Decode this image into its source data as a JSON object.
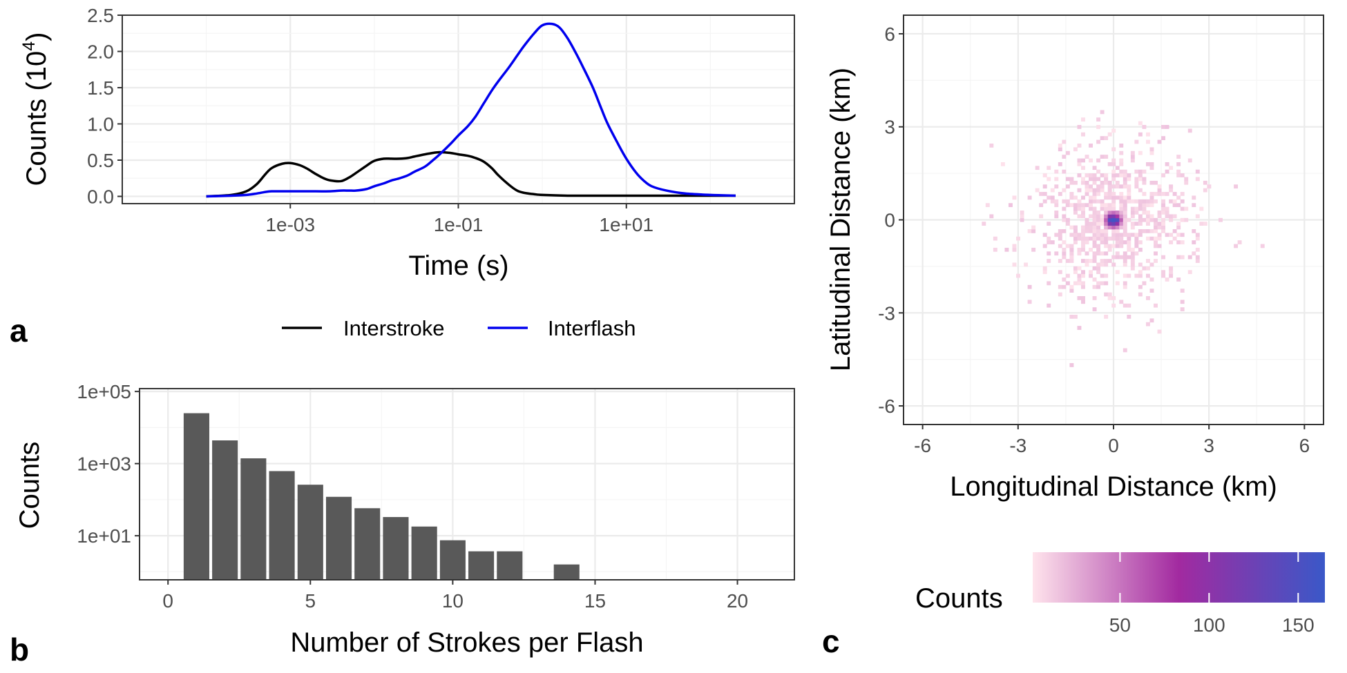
{
  "colors": {
    "interstroke": "#000000",
    "interflash": "#0000ee",
    "bar": "#595959",
    "grid_major": "#ebebeb",
    "grid_minor": "#f5f5f5",
    "panel_border": "#333333",
    "heat_low": "#ffe4ec",
    "heat_mid": "#a22aa0",
    "heat_high": "#3a58c8"
  },
  "panel_labels": {
    "a": "a",
    "b": "b",
    "c": "c"
  },
  "legend": {
    "interstroke": "Interstroke",
    "interflash": "Interflash"
  },
  "chart_data": [
    {
      "id": "a",
      "type": "line",
      "xlabel": "Time (s)",
      "ylabel": "Counts (10",
      "ylabel_sup": "4",
      "ylabel_end": ")",
      "x_scale": "log10",
      "xlim": [
        1e-05,
        1000
      ],
      "ylim": [
        -0.1,
        2.5
      ],
      "x_ticks": [
        0.001,
        0.1,
        10
      ],
      "x_tick_labels": [
        "1e-03",
        "1e-01",
        "1e+01"
      ],
      "y_ticks": [
        0,
        0.5,
        1,
        1.5,
        2,
        2.5
      ],
      "y_tick_labels": [
        "0.0",
        "0.5",
        "1.0",
        "1.5",
        "2.0",
        "2.5"
      ],
      "legend_position": "bottom",
      "series": [
        {
          "name": "Interstroke",
          "x": [
            0.0001,
            0.0002,
            0.0003,
            0.0004,
            0.0005,
            0.0006,
            0.0008,
            0.001,
            0.0013,
            0.0016,
            0.002,
            0.0025,
            0.003,
            0.004,
            0.005,
            0.006,
            0.008,
            0.01,
            0.013,
            0.016,
            0.02,
            0.025,
            0.03,
            0.04,
            0.05,
            0.06,
            0.08,
            0.1,
            0.13,
            0.16,
            0.2,
            0.25,
            0.3,
            0.4,
            0.5,
            0.6,
            0.8,
            1,
            2,
            5,
            10,
            20,
            50,
            100,
            200
          ],
          "y": [
            0.0,
            0.02,
            0.07,
            0.17,
            0.3,
            0.39,
            0.45,
            0.46,
            0.43,
            0.38,
            0.31,
            0.25,
            0.22,
            0.21,
            0.26,
            0.32,
            0.42,
            0.49,
            0.52,
            0.52,
            0.52,
            0.53,
            0.55,
            0.58,
            0.6,
            0.61,
            0.6,
            0.58,
            0.56,
            0.53,
            0.48,
            0.39,
            0.29,
            0.16,
            0.08,
            0.05,
            0.03,
            0.02,
            0.01,
            0.01,
            0.01,
            0.01,
            0.01,
            0.01,
            0.01
          ]
        },
        {
          "name": "Interflash",
          "x": [
            0.0001,
            0.0002,
            0.0003,
            0.0004,
            0.0005,
            0.0006,
            0.0008,
            0.001,
            0.002,
            0.003,
            0.004,
            0.005,
            0.006,
            0.008,
            0.01,
            0.013,
            0.016,
            0.02,
            0.025,
            0.03,
            0.04,
            0.05,
            0.06,
            0.08,
            0.1,
            0.13,
            0.16,
            0.2,
            0.25,
            0.3,
            0.4,
            0.5,
            0.6,
            0.8,
            1,
            1.3,
            1.6,
            2,
            2.5,
            3,
            4,
            5,
            6,
            8,
            10,
            13,
            16,
            20,
            30,
            50,
            100,
            200
          ],
          "y": [
            0.0,
            0.01,
            0.02,
            0.04,
            0.06,
            0.07,
            0.07,
            0.07,
            0.07,
            0.07,
            0.08,
            0.08,
            0.08,
            0.1,
            0.14,
            0.18,
            0.22,
            0.25,
            0.29,
            0.34,
            0.41,
            0.5,
            0.58,
            0.72,
            0.84,
            0.97,
            1.1,
            1.28,
            1.46,
            1.59,
            1.78,
            1.94,
            2.07,
            2.25,
            2.36,
            2.38,
            2.33,
            2.18,
            1.98,
            1.8,
            1.5,
            1.22,
            1.0,
            0.72,
            0.52,
            0.33,
            0.22,
            0.14,
            0.08,
            0.04,
            0.02,
            0.01
          ]
        }
      ]
    },
    {
      "id": "b",
      "type": "bar",
      "xlabel": "Number of Strokes per Flash",
      "ylabel": "Counts",
      "y_scale": "log10",
      "xlim": [
        -1,
        22
      ],
      "ylim": [
        0.6,
        120000
      ],
      "x_ticks": [
        0,
        5,
        10,
        15,
        20
      ],
      "x_tick_labels": [
        "0",
        "5",
        "10",
        "15",
        "20"
      ],
      "y_ticks": [
        10,
        1000,
        100000
      ],
      "y_tick_labels": [
        "1e+01",
        "1e+03",
        "1e+05"
      ],
      "categories": [
        1,
        2,
        3,
        4,
        5,
        6,
        7,
        8,
        9,
        10,
        11,
        12,
        14
      ],
      "values": [
        25000,
        4400,
        1400,
        620,
        260,
        120,
        58,
        33,
        18,
        7.5,
        3.7,
        3.7,
        1.6
      ]
    },
    {
      "id": "c",
      "type": "heatmap",
      "xlabel": "Longitudinal Distance (km)",
      "ylabel": "Latitudinal Distance (km)",
      "xlim": [
        -6.6,
        6.6
      ],
      "ylim": [
        -6.6,
        6.6
      ],
      "x_ticks": [
        -6,
        -3,
        0,
        3,
        6
      ],
      "x_tick_labels": [
        "-6",
        "-3",
        "0",
        "3",
        "6"
      ],
      "y_ticks": [
        -6,
        -3,
        0,
        3,
        6
      ],
      "y_tick_labels": [
        "-6",
        "-3",
        "0",
        "3",
        "6"
      ],
      "center": [
        0,
        0
      ],
      "spread_km": 1.3,
      "max_count": 165,
      "colorbar": {
        "title": "Counts",
        "min": 1,
        "max": 165,
        "ticks": [
          50,
          100,
          150
        ],
        "tick_labels": [
          "50",
          "100",
          "150"
        ]
      }
    }
  ]
}
